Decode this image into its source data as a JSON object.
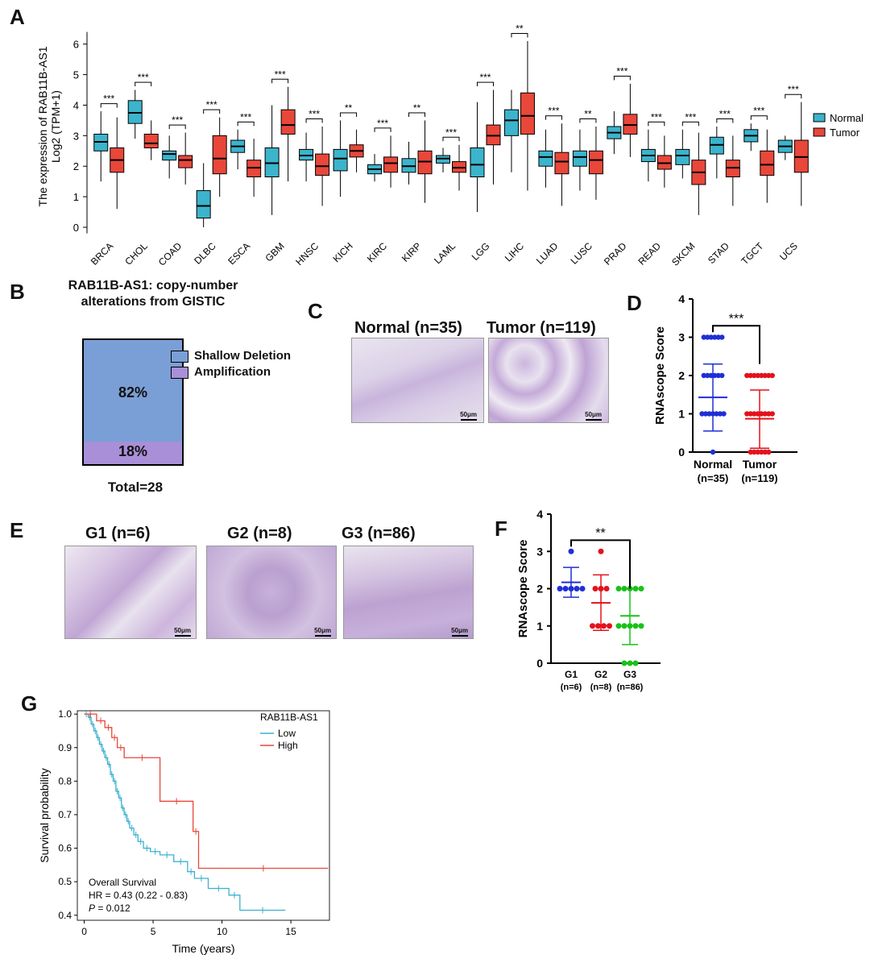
{
  "panels": {
    "A": "A",
    "B": "B",
    "C": "C",
    "D": "D",
    "E": "E",
    "F": "F",
    "G": "G"
  },
  "colors": {
    "normal": "#3CB4CC",
    "tumor": "#E8473A",
    "blue": "#1f2fd6",
    "red": "#e3121b",
    "green": "#18c218",
    "low": "#3bb0d0",
    "high": "#e8473a",
    "deletion": "#7a9fd6",
    "amplification": "#a98fd8"
  },
  "chart_data": [
    {
      "id": "A",
      "type": "box",
      "ylabel_line1": "The expression of RAB11B-AS1",
      "ylabel_line2": "Log2 (TPM+1)",
      "ylim": [
        0,
        6.6
      ],
      "yticks": [
        0,
        1,
        2,
        3,
        4,
        5,
        6
      ],
      "legend": [
        "Normal",
        "Tumor"
      ],
      "categories": [
        "BRCA",
        "CHOL",
        "COAD",
        "DLBC",
        "ESCA",
        "GBM",
        "HNSC",
        "KICH",
        "KIRC",
        "KIRP",
        "LAML",
        "LGG",
        "LIHC",
        "LUAD",
        "LUSC",
        "PRAD",
        "READ",
        "SKCM",
        "STAD",
        "TGCT",
        "UCS"
      ],
      "significance": [
        "***",
        "***",
        "***",
        "***",
        "***",
        "***",
        "***",
        "**",
        "***",
        "**",
        "***",
        "***",
        "**",
        "***",
        "**",
        "***",
        "***",
        "***",
        "***",
        "***",
        "***"
      ],
      "normal": [
        [
          1.5,
          2.5,
          2.8,
          3.05,
          3.8
        ],
        [
          2.9,
          3.4,
          3.75,
          4.15,
          4.5
        ],
        [
          1.6,
          2.2,
          2.4,
          2.5,
          3.0
        ],
        [
          0.0,
          0.3,
          0.7,
          1.2,
          2.1
        ],
        [
          1.9,
          2.45,
          2.65,
          2.85,
          3.2
        ],
        [
          0.4,
          1.65,
          2.1,
          2.6,
          4.0
        ],
        [
          1.5,
          2.2,
          2.35,
          2.55,
          3.1
        ],
        [
          1.0,
          1.85,
          2.25,
          2.55,
          3.5
        ],
        [
          1.5,
          1.75,
          1.9,
          2.05,
          2.4
        ],
        [
          1.4,
          1.8,
          2.0,
          2.25,
          2.8
        ],
        [
          1.8,
          2.1,
          2.25,
          2.35,
          2.6
        ],
        [
          0.5,
          1.65,
          2.05,
          2.6,
          4.1
        ],
        [
          1.8,
          3.0,
          3.5,
          3.85,
          4.5
        ],
        [
          1.3,
          2.0,
          2.3,
          2.5,
          3.2
        ],
        [
          1.2,
          2.0,
          2.3,
          2.5,
          3.2
        ],
        [
          2.4,
          2.9,
          3.1,
          3.3,
          3.8
        ],
        [
          1.5,
          2.15,
          2.35,
          2.55,
          3.2
        ],
        [
          1.6,
          2.05,
          2.35,
          2.55,
          3.2
        ],
        [
          1.6,
          2.4,
          2.7,
          2.95,
          3.3
        ],
        [
          2.5,
          2.8,
          3.0,
          3.2,
          3.4
        ],
        [
          2.2,
          2.45,
          2.65,
          2.85,
          3.0
        ]
      ],
      "tumor": [
        [
          0.6,
          1.8,
          2.2,
          2.6,
          3.6
        ],
        [
          2.2,
          2.6,
          2.75,
          3.05,
          3.5
        ],
        [
          1.4,
          1.95,
          2.2,
          2.35,
          3.1
        ],
        [
          1.0,
          1.75,
          2.25,
          3.0,
          3.6
        ],
        [
          1.0,
          1.65,
          1.95,
          2.2,
          2.9
        ],
        [
          1.5,
          3.05,
          3.35,
          3.85,
          4.6
        ],
        [
          0.7,
          1.7,
          2.0,
          2.4,
          3.3
        ],
        [
          1.8,
          2.3,
          2.5,
          2.7,
          3.2
        ],
        [
          1.3,
          1.8,
          2.1,
          2.3,
          3.0
        ],
        [
          0.8,
          1.75,
          2.15,
          2.5,
          3.5
        ],
        [
          1.2,
          1.8,
          1.95,
          2.15,
          2.7
        ],
        [
          1.4,
          2.7,
          3.0,
          3.35,
          4.5
        ],
        [
          1.2,
          3.05,
          3.65,
          4.4,
          6.1
        ],
        [
          0.7,
          1.75,
          2.15,
          2.45,
          3.4
        ],
        [
          0.9,
          1.75,
          2.2,
          2.5,
          3.3
        ],
        [
          2.3,
          3.05,
          3.35,
          3.7,
          4.7
        ],
        [
          1.3,
          1.9,
          2.1,
          2.35,
          3.0
        ],
        [
          0.4,
          1.4,
          1.8,
          2.2,
          3.1
        ],
        [
          0.7,
          1.65,
          1.95,
          2.2,
          3.0
        ],
        [
          0.8,
          1.7,
          2.05,
          2.5,
          3.2
        ],
        [
          0.7,
          1.8,
          2.3,
          2.85,
          4.1
        ]
      ]
    },
    {
      "id": "B",
      "type": "stacked-bar",
      "title_line1": "RAB11B-AS1: copy-number",
      "title_line2": "alterations from GISTIC",
      "segments": [
        {
          "name": "Shallow Deletion",
          "value": 82,
          "label": "82%"
        },
        {
          "name": "Amplification",
          "value": 18,
          "label": "18%"
        }
      ],
      "total_label": "Total=28"
    },
    {
      "id": "D",
      "type": "scatter",
      "ylabel": "RNAscope Score",
      "ylim": [
        0,
        4
      ],
      "yticks": [
        0,
        1,
        2,
        3,
        4
      ],
      "groups": [
        {
          "name": "Normal",
          "n": "(n=35)",
          "mean": 1.43,
          "sd_low": 0.55,
          "sd_high": 2.3,
          "color": "blue"
        },
        {
          "name": "Tumor",
          "n": "(n=119)",
          "mean": 0.87,
          "sd_low": 0.1,
          "sd_high": 1.62,
          "color": "red"
        }
      ],
      "significance": "***"
    },
    {
      "id": "F",
      "type": "scatter",
      "ylabel": "RNAscope Score",
      "ylim": [
        0,
        4
      ],
      "yticks": [
        0,
        1,
        2,
        3,
        4
      ],
      "groups": [
        {
          "name": "G1",
          "n": "(n=6)",
          "mean": 2.17,
          "sd_low": 1.77,
          "sd_high": 2.57,
          "color": "blue"
        },
        {
          "name": "G2",
          "n": "(n=8)",
          "mean": 1.62,
          "sd_low": 0.88,
          "sd_high": 2.37,
          "color": "red"
        },
        {
          "name": "G3",
          "n": "(n=86)",
          "mean": 1.27,
          "sd_low": 0.5,
          "sd_high": 2.0,
          "color": "green"
        }
      ],
      "significance": "**"
    },
    {
      "id": "G",
      "type": "line",
      "subtype": "kaplan-meier",
      "xlabel": "Time (years)",
      "ylabel": "Survival probability",
      "xlim": [
        -0.5,
        17.8
      ],
      "ylim": [
        0.385,
        1.01
      ],
      "xticks": [
        0,
        5,
        10,
        15
      ],
      "yticks": [
        0.4,
        0.5,
        0.6,
        0.7,
        0.8,
        0.9,
        1.0
      ],
      "legend_title": "RAB11B-AS1",
      "series": [
        {
          "name": "Low",
          "color": "low",
          "x": [
            0,
            0.3,
            0.5,
            0.7,
            0.9,
            1.1,
            1.3,
            1.5,
            1.7,
            1.9,
            2.1,
            2.3,
            2.5,
            2.7,
            2.9,
            3.1,
            3.3,
            3.6,
            3.9,
            4.3,
            4.8,
            5.5,
            6.5,
            7.5,
            8.0,
            9.0,
            10.5,
            11.3,
            14.6
          ],
          "y": [
            1.0,
            0.99,
            0.97,
            0.95,
            0.93,
            0.91,
            0.89,
            0.87,
            0.85,
            0.82,
            0.8,
            0.77,
            0.75,
            0.72,
            0.7,
            0.68,
            0.66,
            0.64,
            0.62,
            0.6,
            0.59,
            0.58,
            0.56,
            0.53,
            0.51,
            0.48,
            0.46,
            0.415,
            0.415
          ]
        },
        {
          "name": "High",
          "color": "high",
          "x": [
            0,
            0.9,
            1.5,
            2.0,
            2.4,
            2.9,
            5.5,
            7.9,
            8.3,
            17.7
          ],
          "y": [
            1.0,
            0.98,
            0.96,
            0.93,
            0.9,
            0.87,
            0.74,
            0.65,
            0.54,
            0.54
          ]
        }
      ],
      "annotation_line1": "Overall Survival",
      "annotation_line2": "HR = 0.43 (0.22 -  0.83)",
      "annotation_p_symbol": "P",
      "annotation_p_value": " = 0.012"
    }
  ],
  "panelC": {
    "normal_label": "Normal (n=35)",
    "tumor_label": "Tumor (n=119)",
    "scale": "50μm"
  },
  "panelE": {
    "g1_label": "G1 (n=6)",
    "g2_label": "G2 (n=8)",
    "g3_label": "G3 (n=86)",
    "scale": "50μm"
  }
}
